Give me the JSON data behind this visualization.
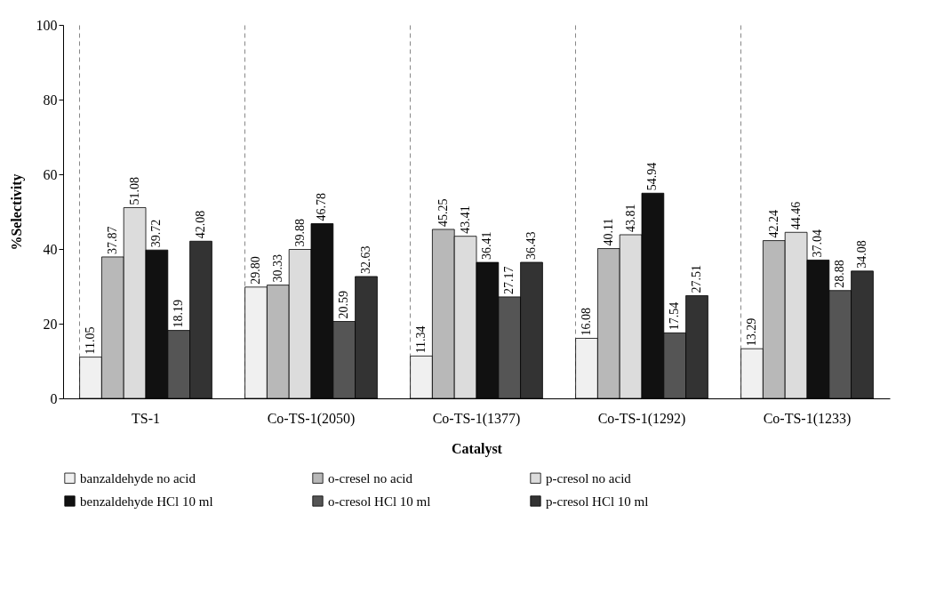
{
  "chart_data": {
    "type": "bar",
    "xlabel": "Catalyst",
    "ylabel": "%Selectivity",
    "categories": [
      "TS-1",
      "Co-TS-1(2050)",
      "Co-TS-1(1377)",
      "Co-TS-1(1292)",
      "Co-TS-1(1233)"
    ],
    "series": [
      {
        "name": "banzaldehyde no acid",
        "color": "#f0f0f0",
        "values": [
          11.05,
          29.8,
          11.34,
          16.08,
          13.29
        ],
        "value_labels": [
          "11.05",
          "29.80",
          "11.34",
          "16.08",
          "13.29"
        ]
      },
      {
        "name": "o-cresel no acid",
        "color": "#b8b8b8",
        "values": [
          37.87,
          30.33,
          45.25,
          40.11,
          42.24
        ],
        "value_labels": [
          "37.87",
          "30.33",
          "45.25",
          "40.11",
          "42.24"
        ]
      },
      {
        "name": "p-cresol no acid",
        "color": "#dcdcdc",
        "values": [
          51.08,
          39.88,
          43.41,
          43.81,
          44.46
        ],
        "value_labels": [
          "51.08",
          "39.88",
          "43.41",
          "43.81",
          "44.46"
        ]
      },
      {
        "name": "benzaldehyde HCl 10 ml",
        "color": "#111111",
        "values": [
          39.72,
          46.78,
          36.41,
          54.94,
          37.04
        ],
        "value_labels": [
          "39.72",
          "46.78",
          "36.41",
          "54.94",
          "37.04"
        ]
      },
      {
        "name": "o-cresol HCl 10 ml",
        "color": "#555555",
        "values": [
          18.19,
          20.59,
          27.17,
          17.54,
          28.88
        ],
        "value_labels": [
          "18.19",
          "20.59",
          "27.17",
          "17.54",
          "28.88"
        ]
      },
      {
        "name": "p-cresol HCl 10 ml",
        "color": "#333333",
        "values": [
          42.08,
          32.63,
          36.43,
          27.51,
          34.08
        ],
        "value_labels": [
          "42.08",
          "32.63",
          "36.43",
          "27.51",
          "34.08"
        ]
      }
    ],
    "ylim": [
      0,
      100
    ],
    "yticks": [
      0,
      20,
      40,
      60,
      80,
      100
    ],
    "grid": "x",
    "legend": "bottom"
  }
}
